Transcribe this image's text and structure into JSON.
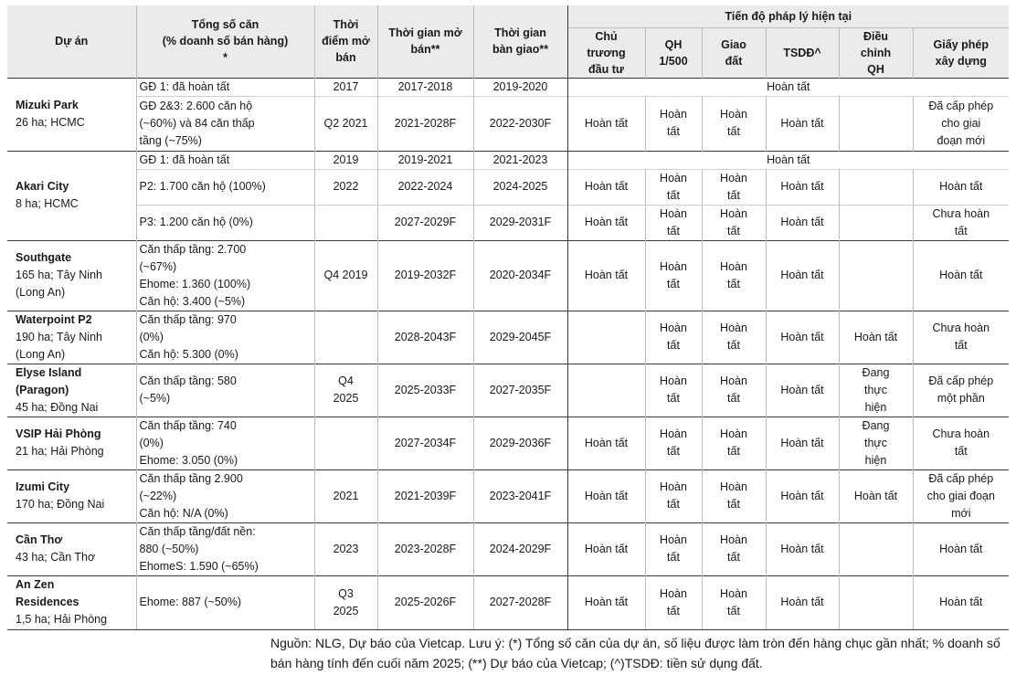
{
  "header": {
    "du_an": "Dự án",
    "tong_so_can": "Tổng số căn\n(% doanh số bán hàng)\n*",
    "thoi_diem_mo_ban": "Thời\nđiểm mở\nbán",
    "thoi_gian_mo_ban": "Thời gian mở\nbán**",
    "thoi_gian_ban_giao": "Thời gian\nbàn giao**",
    "tien_do": "Tiến độ pháp lý hiện tại",
    "chu_truong": "Chủ\ntrương\nđầu tư",
    "qh": "QH\n1/500",
    "giao_dat": "Giao\nđất",
    "tsdd": "TSDĐ^",
    "dieu_chinh": "Điều\nchỉnh\nQH",
    "gpxd": "Giấy phép\nxây dựng"
  },
  "projects": [
    {
      "name": "Mizuki Park",
      "info": "26 ha; HCMC",
      "rows": [
        {
          "units": "GĐ 1: đã hoàn tất",
          "open": "2017",
          "sale": "2017-2018",
          "handover": "2019-2020",
          "merged": "Hoàn tất"
        },
        {
          "units": "GĐ 2&3: 2.600 căn hộ\n(~60%) và 84 căn thấp\ntầng (~75%)",
          "open": "Q2 2021",
          "sale": "2021-2028F",
          "handover": "2022-2030F",
          "legal": [
            "Hoàn tất",
            "Hoàn\ntất",
            "Hoàn\ntất",
            "Hoàn tất",
            "",
            "Đã cấp phép\ncho giai\nđoạn mới"
          ]
        }
      ]
    },
    {
      "name": "Akari City",
      "info": "8 ha; HCMC",
      "rows": [
        {
          "units": "GĐ 1: đã hoàn tất",
          "open": "2019",
          "sale": "2019-2021",
          "handover": "2021-2023",
          "merged": "Hoàn tất"
        },
        {
          "units": "P2: 1.700 căn hộ  (100%)",
          "open": "2022",
          "sale": "2022-2024",
          "handover": "2024-2025",
          "legal": [
            "Hoàn tất",
            "Hoàn\ntất",
            "Hoàn\ntất",
            "Hoàn tất",
            "",
            "Hoàn tất"
          ]
        },
        {
          "units": "P3: 1.200 căn hộ (0%)",
          "open": "",
          "sale": "2027-2029F",
          "handover": "2029-2031F",
          "legal": [
            "Hoàn tất",
            "Hoàn\ntất",
            "Hoàn\ntất",
            "Hoàn tất",
            "",
            "Chưa hoàn\ntất"
          ]
        }
      ]
    },
    {
      "name": "Southgate",
      "info": "165 ha; Tây Ninh\n(Long An)",
      "rows": [
        {
          "units": "Căn thấp tầng: 2.700\n(~67%)\nEhome: 1.360 (100%)\nCăn hộ: 3.400 (~5%)",
          "open": "Q4 2019",
          "sale": "2019-2032F",
          "handover": "2020-2034F",
          "legal": [
            "Hoàn tất",
            "Hoàn\ntất",
            "Hoàn\ntất",
            "Hoàn tất",
            "",
            "Hoàn tất"
          ]
        }
      ]
    },
    {
      "name": "Waterpoint P2",
      "info": "190 ha; Tây Ninh\n(Long An)",
      "rows": [
        {
          "units": "Căn thấp tầng: 970\n(0%)\nCăn hộ: 5.300 (0%)",
          "open": "",
          "sale": "2028-2043F",
          "handover": "2029-2045F",
          "legal": [
            "",
            "Hoàn\ntất",
            "Hoàn\ntất",
            "Hoàn tất",
            "Hoàn tất",
            "Chưa hoàn\ntất"
          ]
        }
      ]
    },
    {
      "name": "Elyse Island\n(Paragon)",
      "info": "45 ha; Đồng Nai",
      "rows": [
        {
          "units": "Căn thấp tầng: 580\n(~5%)",
          "open": "Q4\n2025",
          "sale": "2025-2033F",
          "handover": "2027-2035F",
          "legal": [
            "",
            "Hoàn\ntất",
            "Hoàn\ntất",
            "Hoàn tất",
            "Đang\nthực\nhiện",
            "Đã cấp phép\nmột phần"
          ]
        }
      ]
    },
    {
      "name": "VSIP Hải Phòng",
      "info": "21 ha; Hải Phòng",
      "rows": [
        {
          "units": "Căn thấp tầng: 740\n(0%)\nEhome: 3.050 (0%)",
          "open": "",
          "sale": "2027-2034F",
          "handover": "2029-2036F",
          "legal": [
            "Hoàn tất",
            "Hoàn\ntất",
            "Hoàn\ntất",
            "Hoàn tất",
            "Đang\nthực\nhiện",
            "Chưa hoàn\ntất"
          ]
        }
      ]
    },
    {
      "name": "Izumi City",
      "info": "170 ha; Đồng Nai",
      "rows": [
        {
          "units": "Căn thấp tầng 2.900\n(~22%)\nCăn hộ: N/A (0%)",
          "open": "2021",
          "sale": "2021-2039F",
          "handover": "2023-2041F",
          "legal": [
            "Hoàn tất",
            "Hoàn\ntất",
            "Hoàn\ntất",
            "Hoàn tất",
            "Hoàn tất",
            "Đã cấp phép\ncho giai đoạn\nmới"
          ]
        }
      ]
    },
    {
      "name": "Cần Thơ",
      "info": "43 ha; Cần Thơ",
      "rows": [
        {
          "units": "Căn thấp tầng/đất nền:\n880 (~50%)\nEhomeS: 1.590 (~65%)",
          "open": "2023",
          "sale": "2023-2028F",
          "handover": "2024-2029F",
          "legal": [
            "Hoàn tất",
            "Hoàn\ntất",
            "Hoàn\ntất",
            "Hoàn tất",
            "",
            "Hoàn tất"
          ]
        }
      ]
    },
    {
      "name": "An Zen\nResidences",
      "info": "1,5 ha; Hải Phòng",
      "rows": [
        {
          "units": "Ehome: 887 (~50%)",
          "open": "Q3\n2025",
          "sale": "2025-2026F",
          "handover": "2027-2028F",
          "legal": [
            "Hoàn tất",
            "Hoàn\ntất",
            "Hoàn\ntất",
            "Hoàn tất",
            "",
            "Hoàn tất"
          ]
        }
      ]
    }
  ],
  "footnote": "Nguồn: NLG, Dự báo của Vietcap. Lưu ý: (*) Tổng số căn của dự án, số liệu được làm tròn đến hàng chục gần nhất; % doanh số bán hàng tính đến cuối năm 2025; (**) Dự báo của Vietcap; (^)TSDĐ: tiền sử dụng đất."
}
